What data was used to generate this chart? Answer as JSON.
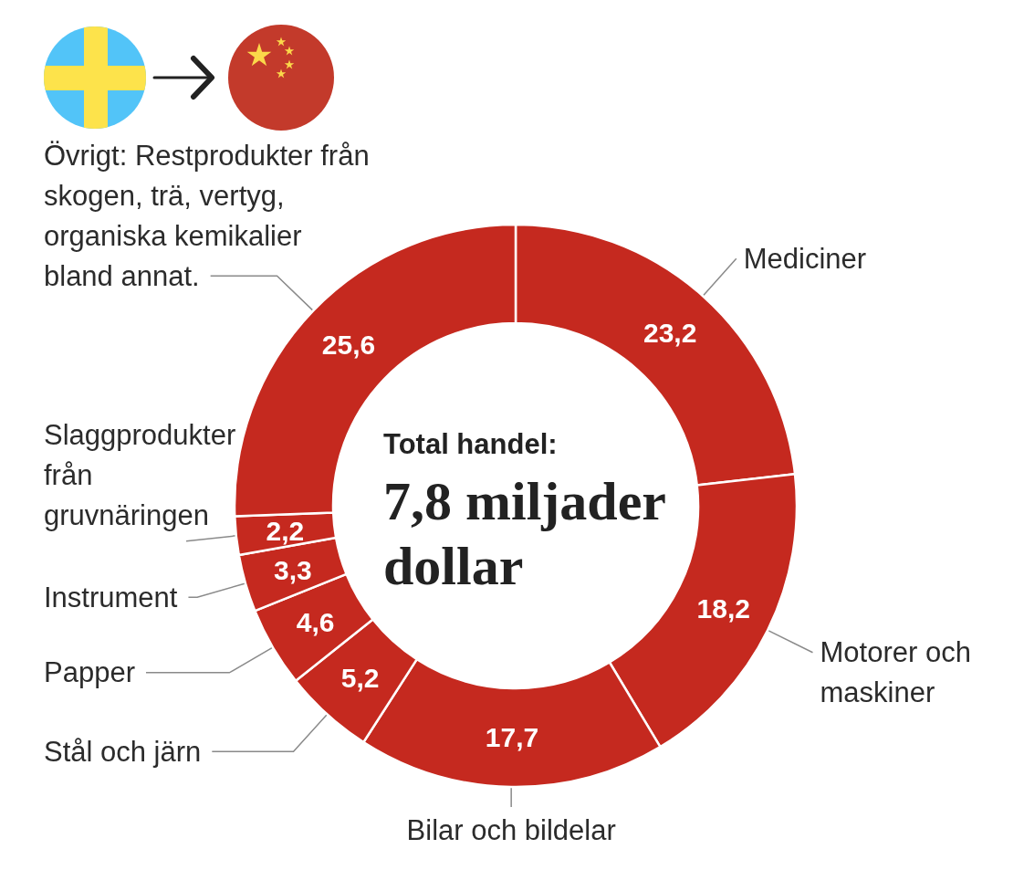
{
  "chart_data": {
    "type": "donut",
    "categories": [
      "Mediciner",
      "Motorer och maskiner",
      "Bilar och bildelar",
      "Stål och järn",
      "Papper",
      "Instrument",
      "Slaggprodukter från gruvnäringen",
      "Övrigt: Restprodukter från skogen, trä, vertyg, organiska kemikalier bland annat."
    ],
    "values": [
      23.2,
      18.2,
      17.7,
      5.2,
      4.6,
      3.3,
      2.2,
      25.6
    ],
    "colors": [
      "#c5291f",
      "#c5291f",
      "#c5291f",
      "#c5291f",
      "#c5291f",
      "#c5291f",
      "#c5291f",
      "#c5291f"
    ],
    "value_labels": [
      "23,2",
      "18,2",
      "17,7",
      "5,2",
      "4,6",
      "3,3",
      "2,2",
      "25,6"
    ],
    "annotations": [
      "Total handel:",
      "7,8 miljader dollar"
    ]
  }
}
